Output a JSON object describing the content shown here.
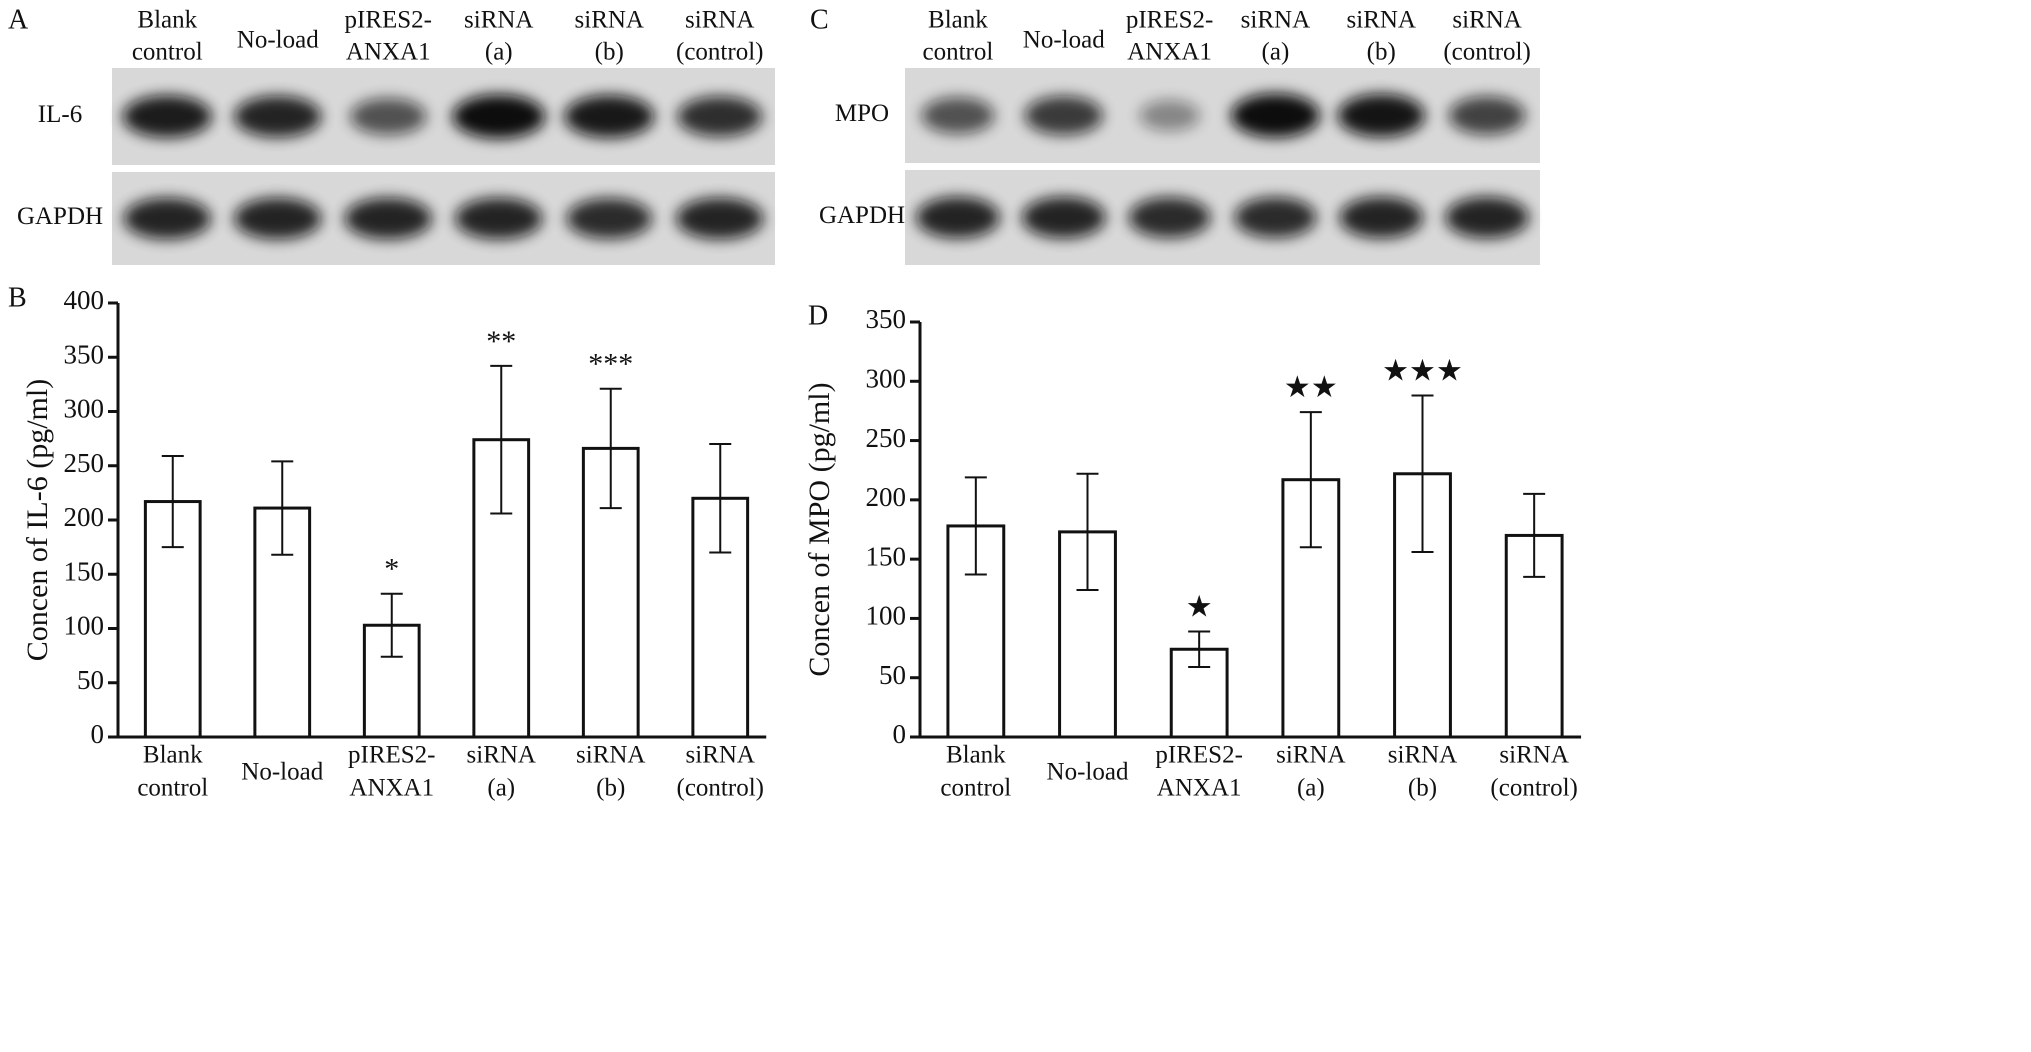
{
  "blots": [
    {
      "panel_label": "A",
      "lanes": [
        [
          "Blank",
          "control"
        ],
        [
          "No-load"
        ],
        [
          "pIRES2-",
          "ANXA1"
        ],
        [
          "siRNA",
          "(a)"
        ],
        [
          "siRNA",
          "(b)"
        ],
        [
          "siRNA",
          "(control)"
        ]
      ],
      "rows": [
        "IL-6",
        "GAPDH"
      ]
    },
    {
      "panel_label": "C",
      "lanes": [
        [
          "Blank",
          "control"
        ],
        [
          "No-load"
        ],
        [
          "pIRES2-",
          "ANXA1"
        ],
        [
          "siRNA",
          "(a)"
        ],
        [
          "siRNA",
          "(b)"
        ],
        [
          "siRNA",
          "(control)"
        ]
      ],
      "rows": [
        "MPO",
        "GAPDH"
      ]
    }
  ],
  "chart_data": [
    {
      "type": "bar",
      "panel_label": "B",
      "y_label": "Concen of IL-6 (pg/ml)",
      "categories": [
        [
          "Blank",
          "control"
        ],
        [
          "No-load"
        ],
        [
          "pIRES2-",
          "ANXA1"
        ],
        [
          "siRNA",
          "(a)"
        ],
        [
          "siRNA",
          "(b)"
        ],
        [
          "siRNA",
          "(control)"
        ]
      ],
      "values": [
        217,
        211,
        103,
        274,
        266,
        220
      ],
      "errors": [
        42,
        43,
        29,
        68,
        55,
        50
      ],
      "annotations": [
        null,
        null,
        "*",
        "**",
        "***",
        null
      ],
      "color": "#ffffff",
      "ylim": [
        0,
        400
      ],
      "yticks": [
        0,
        50,
        100,
        150,
        200,
        250,
        300,
        350,
        400
      ]
    },
    {
      "type": "bar",
      "panel_label": "D",
      "y_label": "Concen of MPO (pg/ml)",
      "categories": [
        [
          "Blank",
          "control"
        ],
        [
          "No-load"
        ],
        [
          "pIRES2-",
          "ANXA1"
        ],
        [
          "siRNA",
          "(a)"
        ],
        [
          "siRNA",
          "(b)"
        ],
        [
          "siRNA",
          "(control)"
        ]
      ],
      "values": [
        178,
        173,
        74,
        217,
        222,
        170
      ],
      "errors": [
        41,
        49,
        15,
        57,
        66,
        35
      ],
      "annotations": [
        null,
        null,
        "★",
        "★★",
        "★★★",
        null
      ],
      "color": "#ffffff",
      "ylim": [
        0,
        350
      ],
      "yticks": [
        0,
        50,
        100,
        150,
        200,
        250,
        300,
        350
      ]
    }
  ]
}
